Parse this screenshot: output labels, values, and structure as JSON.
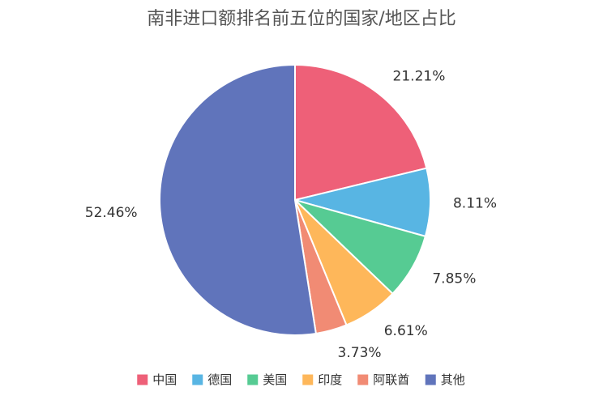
{
  "chart_data": {
    "type": "pie",
    "title": "南非进口额排名前五位的国家/地区占比",
    "categories": [
      "中国",
      "德国",
      "美国",
      "印度",
      "阿联酋",
      "其他"
    ],
    "values": [
      21.21,
      8.11,
      7.85,
      6.61,
      3.73,
      52.46
    ],
    "labels": [
      "21.21%",
      "8.11%",
      "7.85%",
      "6.61%",
      "3.73%",
      "52.46%"
    ],
    "colors": [
      "#ee6078",
      "#58b5e3",
      "#56cb93",
      "#feb75a",
      "#f18b74",
      "#6074bb"
    ],
    "legend_position": "bottom"
  }
}
